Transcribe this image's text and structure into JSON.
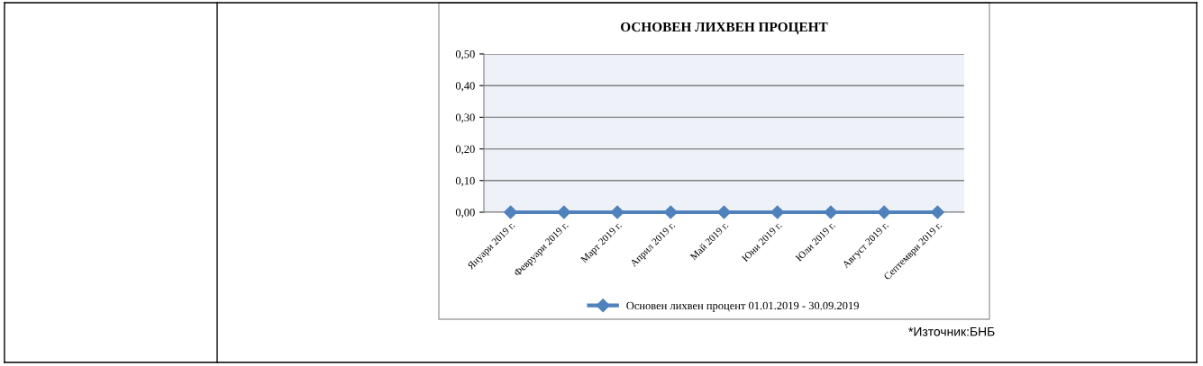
{
  "chart_data": {
    "type": "line",
    "title": "ОСНОВЕН ЛИХВЕН ПРОЦЕНТ",
    "categories": [
      "Януари 2019 г.",
      "Февруари 2019 г.",
      "Март 2019 г.",
      "Април 2019 г.",
      "Май 2019 г.",
      "Юни 2019 г.",
      "Юли 2019 г.",
      "Август 2019 г.",
      "Септември 2019 г."
    ],
    "series": [
      {
        "name": "Основен лихвен процент 01.01.2019 - 30.09.2019",
        "color": "#4f81bd",
        "values": [
          0,
          0,
          0,
          0,
          0,
          0,
          0,
          0,
          0
        ]
      }
    ],
    "ylim": [
      0,
      0.5
    ],
    "yticks": [
      {
        "value": 0,
        "label": "0,00"
      },
      {
        "value": 0.1,
        "label": "0,10"
      },
      {
        "value": 0.2,
        "label": "0,20"
      },
      {
        "value": 0.3,
        "label": "0,30"
      },
      {
        "value": 0.4,
        "label": "0,40"
      },
      {
        "value": 0.5,
        "label": "0,50"
      }
    ],
    "grid": "y",
    "legend": "bottom",
    "marker": "diamond",
    "line_style": "solid",
    "annotations": [
      "*Източник:БНБ"
    ]
  }
}
